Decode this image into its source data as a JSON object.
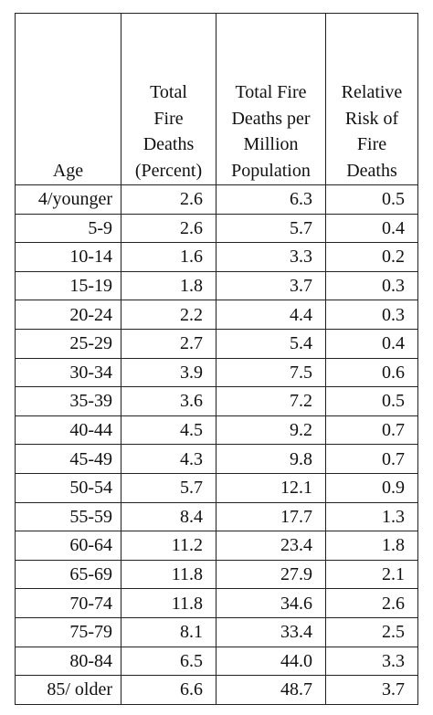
{
  "table": {
    "headers": [
      {
        "lines": [
          "Age"
        ]
      },
      {
        "lines": [
          "Total",
          "Fire",
          "Deaths",
          "(Percent)"
        ]
      },
      {
        "lines": [
          "Total Fire",
          "Deaths per",
          "Million",
          "Population"
        ]
      },
      {
        "lines": [
          "Relative",
          "Risk of",
          "Fire",
          "Deaths"
        ]
      }
    ],
    "rows": [
      [
        "4/younger",
        "2.6",
        "6.3",
        "0.5"
      ],
      [
        "5-9",
        "2.6",
        "5.7",
        "0.4"
      ],
      [
        "10-14",
        "1.6",
        "3.3",
        "0.2"
      ],
      [
        "15-19",
        "1.8",
        "3.7",
        "0.3"
      ],
      [
        "20-24",
        "2.2",
        "4.4",
        "0.3"
      ],
      [
        "25-29",
        "2.7",
        "5.4",
        "0.4"
      ],
      [
        "30-34",
        "3.9",
        "7.5",
        "0.6"
      ],
      [
        "35-39",
        "3.6",
        "7.2",
        "0.5"
      ],
      [
        "40-44",
        "4.5",
        "9.2",
        "0.7"
      ],
      [
        "45-49",
        "4.3",
        "9.8",
        "0.7"
      ],
      [
        "50-54",
        "5.7",
        "12.1",
        "0.9"
      ],
      [
        "55-59",
        "8.4",
        "17.7",
        "1.3"
      ],
      [
        "60-64",
        "11.2",
        "23.4",
        "1.8"
      ],
      [
        "65-69",
        "11.8",
        "27.9",
        "2.1"
      ],
      [
        "70-74",
        "11.8",
        "34.6",
        "2.6"
      ],
      [
        "75-79",
        "8.1",
        "33.4",
        "2.5"
      ],
      [
        "80-84",
        "6.5",
        "44.0",
        "3.3"
      ],
      [
        "85/ older",
        "6.6",
        "48.7",
        "3.7"
      ]
    ]
  }
}
